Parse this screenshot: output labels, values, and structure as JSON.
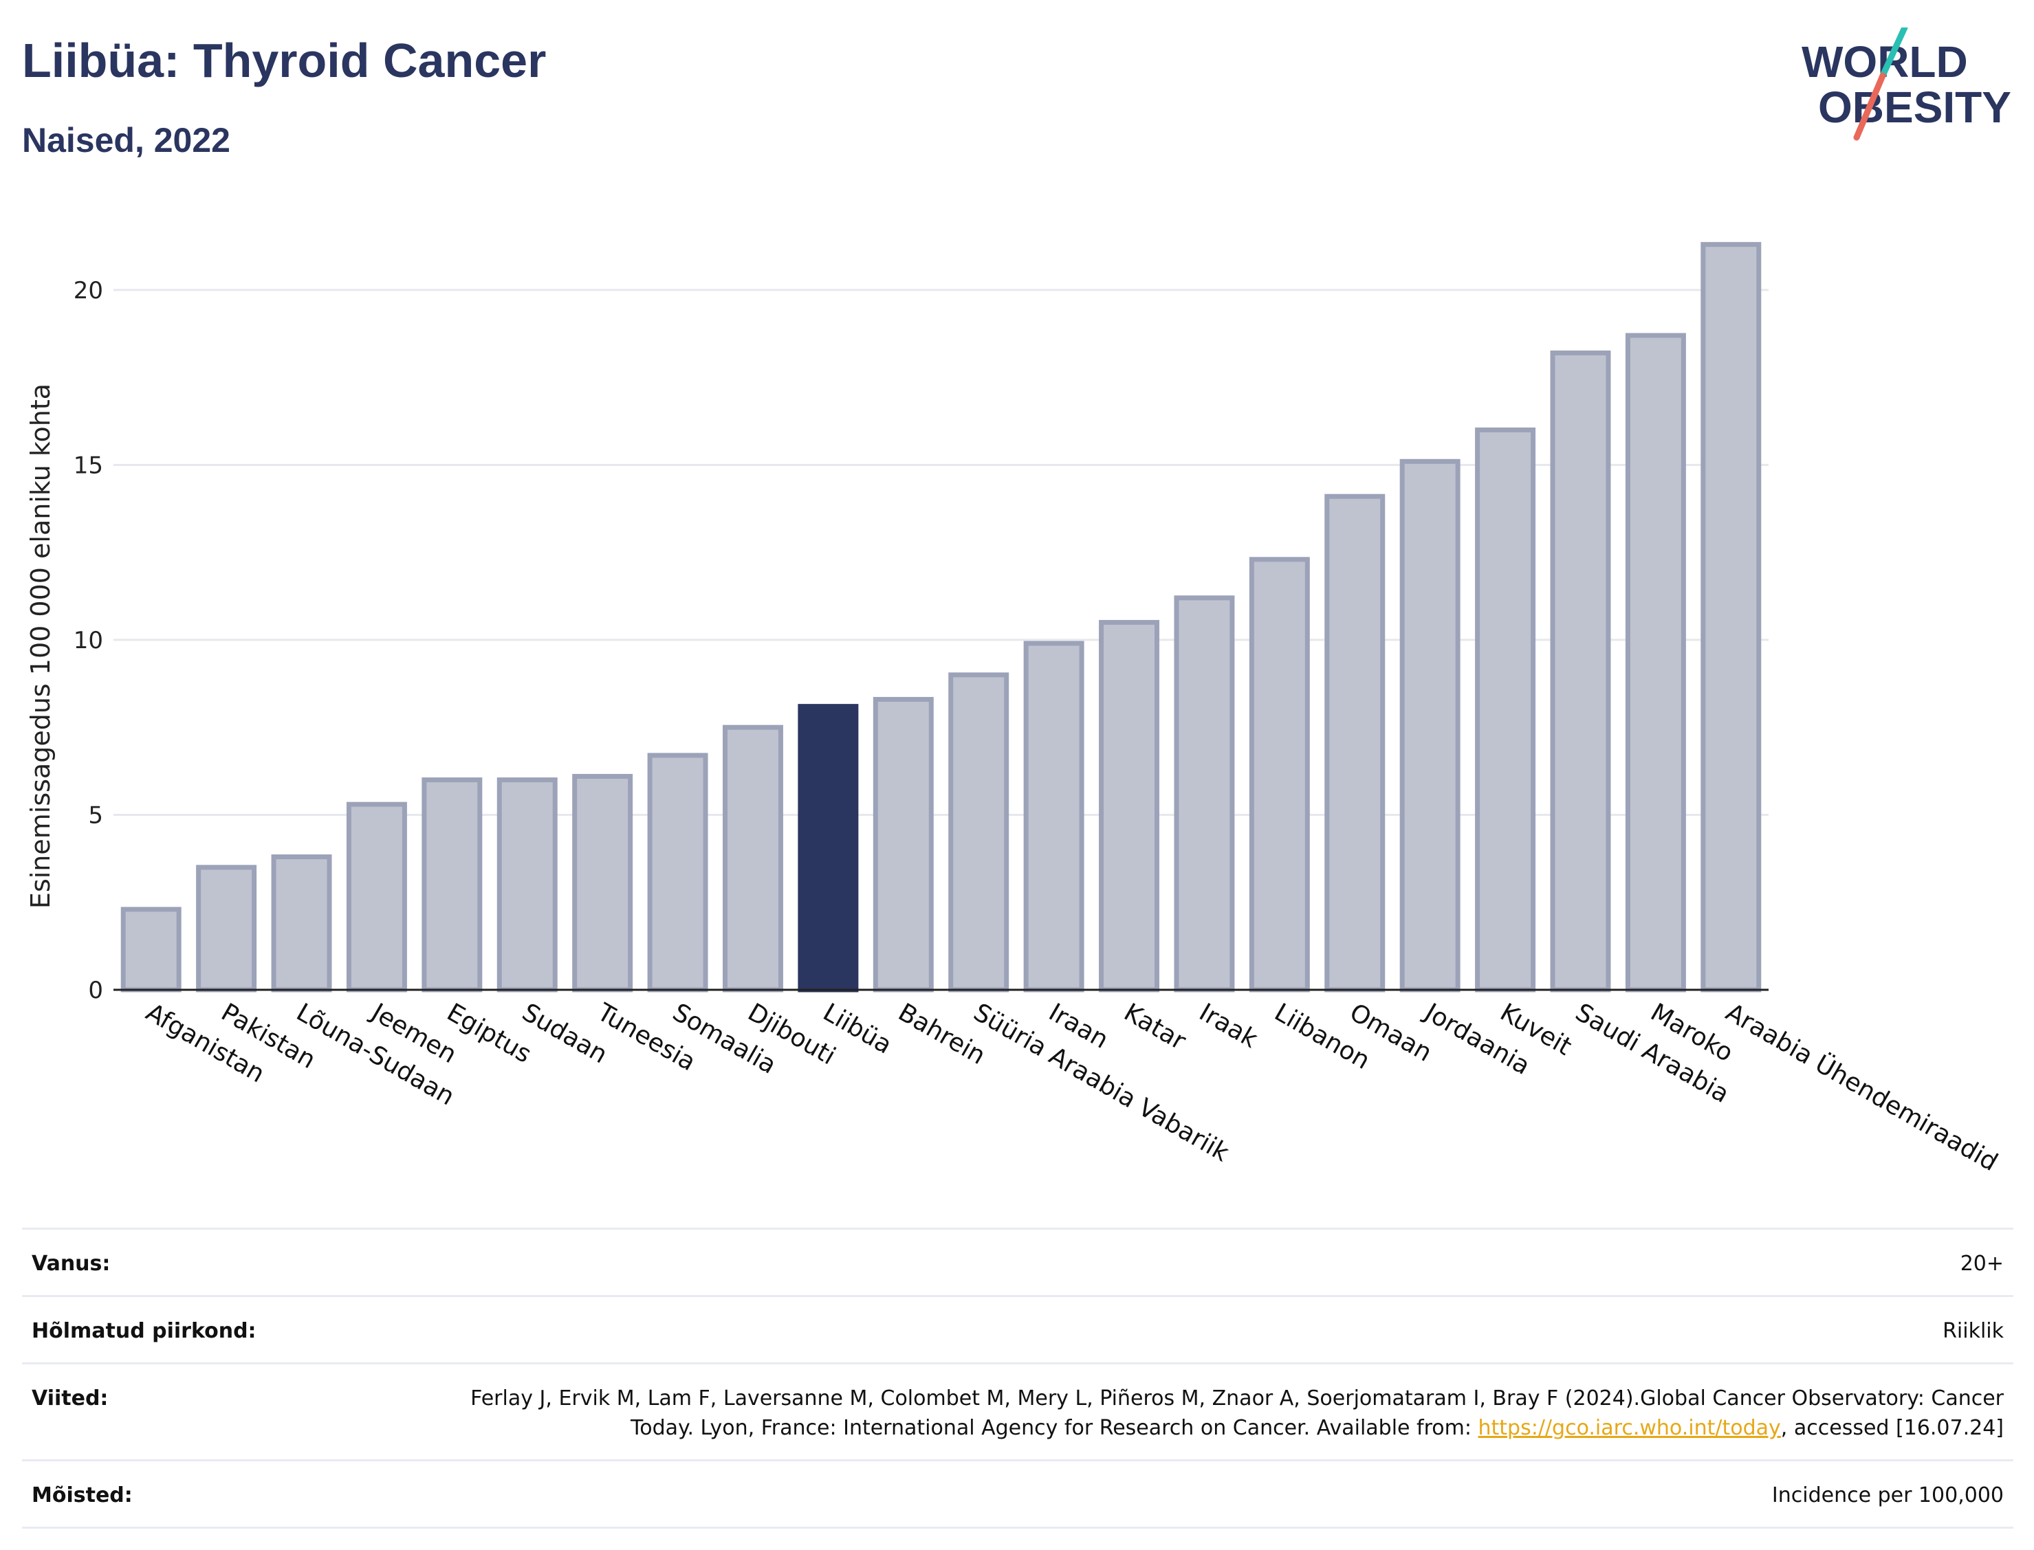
{
  "header": {
    "title": "Liibüa: Thyroid Cancer",
    "subtitle": "Naised, 2022"
  },
  "logo": {
    "line1": "WORLD",
    "line2": "OBESITY",
    "colors": {
      "text": "#2a3560",
      "slash_top": "#2bbfb3",
      "slash_bottom": "#e8685a"
    }
  },
  "chart_data": {
    "type": "bar",
    "ylabel": "Esinemissagedus 100 000 elaniku kohta",
    "ylim": [
      0,
      22
    ],
    "yticks": [
      0,
      5,
      10,
      15,
      20
    ],
    "grid": true,
    "highlight": "Liibüa",
    "colors": {
      "bar": "#bfc3d0",
      "bar_border": "#9ca2b8",
      "highlight": "#2a3560"
    },
    "categories": [
      "Afganistan",
      "Pakistan",
      "Lõuna-Sudaan",
      "Jeemen",
      "Egiptus",
      "Sudaan",
      "Tuneesia",
      "Somaalia",
      "Djibouti",
      "Liibüa",
      "Bahrein",
      "Süüria Araabia Vabariik",
      "Iraan",
      "Katar",
      "Iraak",
      "Liibanon",
      "Omaan",
      "Jordaania",
      "Kuveit",
      "Saudi Araabia",
      "Maroko",
      "Araabia Ühendemiraadid"
    ],
    "values": [
      2.3,
      3.5,
      3.8,
      5.3,
      6.0,
      6.0,
      6.1,
      6.7,
      7.5,
      8.1,
      8.3,
      9.0,
      9.9,
      10.5,
      11.2,
      12.3,
      14.1,
      15.1,
      16.0,
      18.2,
      18.7,
      21.3
    ]
  },
  "meta": {
    "age_label": "Vanus:",
    "age_value": "20+",
    "region_label": "Hõlmatud piirkond:",
    "region_value": "Riiklik",
    "refs_label": "Viited:",
    "refs_text": "Ferlay J, Ervik M, Lam F, Laversanne M, Colombet M, Mery L, Piñeros M, Znaor A, Soerjomataram I, Bray F (2024).Global Cancer Observatory: Cancer Today. Lyon, France: International Agency for Research on Cancer. Available from: ",
    "refs_link": "https://gco.iarc.who.int/today",
    "refs_tail": ", accessed [16.07.24]",
    "definitions_label": "Mõisted:",
    "definitions_value": "Incidence per 100,000"
  }
}
